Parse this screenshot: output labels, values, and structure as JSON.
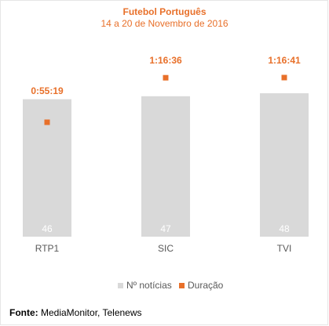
{
  "chart_data": {
    "type": "bar",
    "title": "Futebol Português",
    "subtitle": "14 a 20 de Novembro de 2016",
    "categories": [
      "RTP1",
      "SIC",
      "TVI"
    ],
    "series": [
      {
        "name": "Nº notícias",
        "type": "bar",
        "values": [
          46,
          47,
          48
        ],
        "labels": [
          "46",
          "47",
          "48"
        ],
        "color": "#d9d9d9"
      },
      {
        "name": "Duração",
        "type": "marker",
        "values_seconds": [
          3319,
          4596,
          4601
        ],
        "labels": [
          "0:55:19",
          "1:16:36",
          "1:16:41"
        ],
        "color": "#e8702a"
      }
    ],
    "legend_position": "bottom",
    "grid": false
  },
  "source": {
    "label": "Fonte:",
    "text": " MediaMonitor, Telenews"
  },
  "colors": {
    "accent": "#e8702a",
    "bar": "#d9d9d9",
    "bar_label": "#ffffff",
    "axis_label": "#595959"
  }
}
